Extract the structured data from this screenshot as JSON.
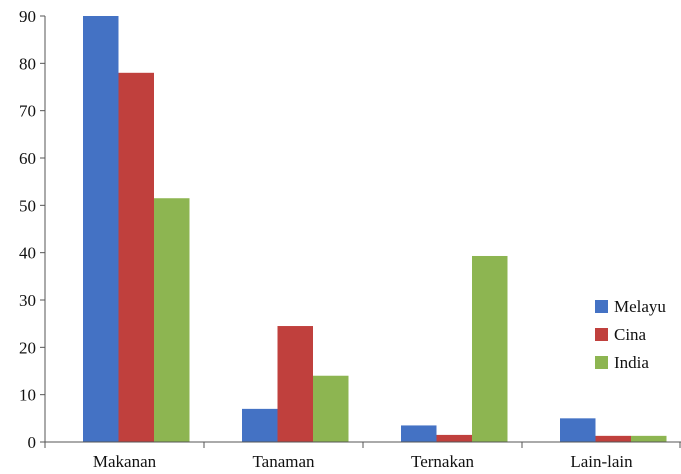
{
  "chart_data": {
    "type": "bar",
    "categories": [
      "Makanan",
      "Tanaman",
      "Ternakan",
      "Lain-lain"
    ],
    "series": [
      {
        "name": "Melayu",
        "color": "#4472C4",
        "values": [
          90,
          7,
          3.5,
          5
        ]
      },
      {
        "name": "Cina",
        "color": "#C0403D",
        "values": [
          78,
          24.5,
          1.5,
          1.3
        ]
      },
      {
        "name": "India",
        "color": "#8DB551",
        "values": [
          51.5,
          14,
          39.3,
          1.3
        ]
      }
    ],
    "ylim": [
      0,
      90
    ],
    "yticks": [
      "0",
      "10",
      "20",
      "30",
      "40",
      "50",
      "60",
      "70",
      "80",
      "90"
    ],
    "grid": false,
    "legend_position": "right"
  }
}
